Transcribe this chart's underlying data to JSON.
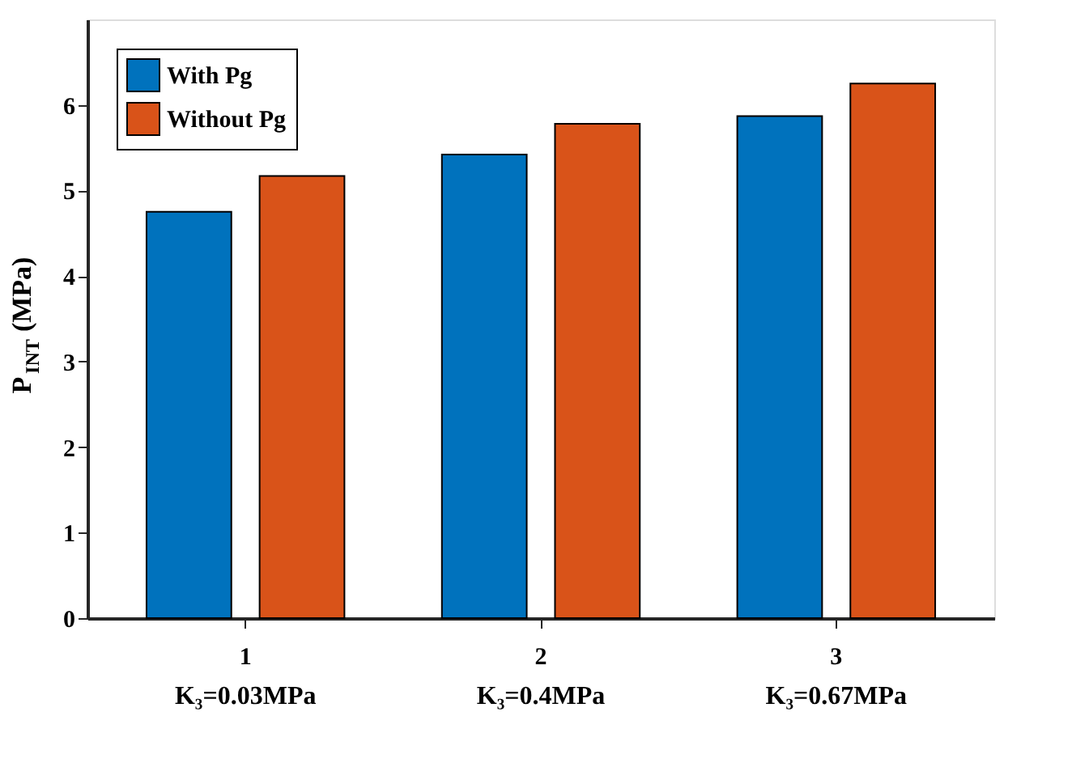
{
  "chart_data": {
    "type": "bar",
    "ylabel": "P$_{INT}$ (MPa)",
    "categories": [
      "1",
      "2",
      "3"
    ],
    "series": [
      {
        "name": "With Pg",
        "color": "#0072bd",
        "values": [
          4.75,
          5.42,
          5.87
        ]
      },
      {
        "name": "Without Pg",
        "color": "#d95319",
        "values": [
          5.17,
          5.78,
          6.25
        ]
      }
    ],
    "ylim": [
      0,
      7
    ],
    "yticks": [
      0,
      1,
      2,
      3,
      4,
      5,
      6
    ],
    "legend": "top left",
    "grid": false,
    "annotations": [
      "K₃=0.03MPa",
      "K₃=0.4MPa",
      "K₃=0.67MPa"
    ]
  }
}
